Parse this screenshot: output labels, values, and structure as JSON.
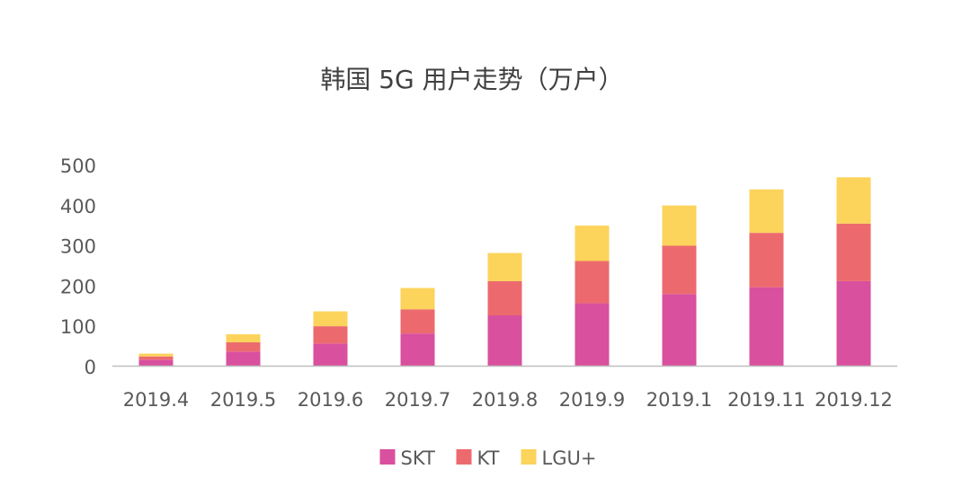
{
  "chart_data": {
    "type": "bar",
    "stacked": true,
    "title": "韩国 5G 用户走势（万户）",
    "categories": [
      "2019.4",
      "2019.5",
      "2019.6",
      "2019.7",
      "2019.8",
      "2019.9",
      "2019.1",
      "2019.11",
      "2019.12"
    ],
    "series": [
      {
        "name": "SKT",
        "color": "#D9509E",
        "values": [
          15,
          35,
          55,
          80,
          125,
          155,
          178,
          195,
          210
        ]
      },
      {
        "name": "KT",
        "color": "#EC6A6E",
        "values": [
          8,
          23,
          43,
          60,
          85,
          105,
          120,
          135,
          143
        ]
      },
      {
        "name": "LGU+",
        "color": "#FCD35B",
        "values": [
          7,
          20,
          37,
          53,
          70,
          88,
          100,
          108,
          115
        ]
      }
    ],
    "yticks": [
      0,
      100,
      200,
      300,
      400,
      500
    ],
    "ylim": [
      0,
      500
    ],
    "grid": false,
    "legend_position": "bottom",
    "axis_color": "#BFBFBF",
    "text_color": "#595959"
  }
}
